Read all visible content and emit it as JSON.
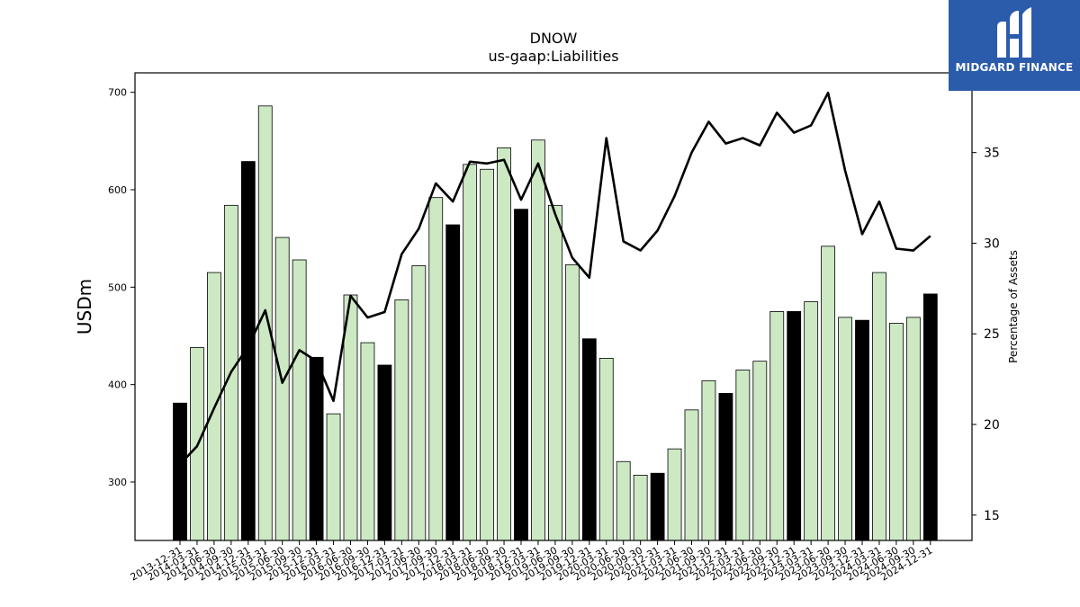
{
  "chart_data": {
    "type": "bar",
    "title": "DNOW",
    "subtitle": "us-gaap:Liabilities",
    "ylabel": "USDm",
    "y2label": "Percentage of Assets",
    "ylim": [
      240,
      720
    ],
    "y2lim": [
      13.6,
      39.4
    ],
    "yticks": [
      300,
      400,
      500,
      600,
      700
    ],
    "y2ticks": [
      15,
      20,
      25,
      30,
      35
    ],
    "colors": {
      "bar_quarter": "#cce9c4",
      "bar_year_end": "#000000",
      "line": "#000000"
    },
    "categories": [
      "2013-12-31",
      "2014-03-31",
      "2014-06-30",
      "2014-09-30",
      "2014-12-31",
      "2015-03-31",
      "2015-06-30",
      "2015-09-30",
      "2015-12-31",
      "2016-03-31",
      "2016-06-30",
      "2016-09-30",
      "2016-12-31",
      "2017-03-31",
      "2017-06-30",
      "2017-09-30",
      "2017-12-31",
      "2018-03-31",
      "2018-06-30",
      "2018-09-30",
      "2018-12-31",
      "2019-03-31",
      "2019-06-30",
      "2019-09-30",
      "2019-12-31",
      "2020-03-31",
      "2020-06-30",
      "2020-09-30",
      "2020-12-31",
      "2021-03-31",
      "2021-06-30",
      "2021-09-30",
      "2021-12-31",
      "2022-03-31",
      "2022-06-30",
      "2022-09-30",
      "2022-12-31",
      "2023-03-31",
      "2023-06-30",
      "2023-09-30",
      "2023-12-31",
      "2024-03-31",
      "2024-06-30",
      "2024-09-30",
      "2024-12-31"
    ],
    "series": [
      {
        "type": "bar",
        "values": [
          381,
          438,
          515,
          584,
          629,
          686,
          551,
          528,
          428,
          370,
          492,
          443,
          420,
          487,
          522,
          592,
          564,
          626,
          621,
          643,
          580,
          651,
          584,
          523,
          447,
          427,
          321,
          307,
          309,
          334,
          374,
          404,
          391,
          415,
          424,
          475,
          475,
          485,
          542,
          469,
          466,
          515,
          463,
          469,
          493
        ]
      },
      {
        "type": "line",
        "axis": "right",
        "values": [
          17.8,
          18.8,
          20.9,
          22.9,
          24.3,
          26.3,
          22.3,
          24.1,
          23.5,
          21.3,
          27.1,
          25.9,
          26.2,
          29.4,
          30.8,
          33.3,
          32.3,
          34.5,
          34.4,
          34.6,
          32.4,
          34.4,
          31.6,
          29.2,
          28.1,
          35.8,
          30.1,
          29.6,
          30.7,
          32.6,
          35.0,
          36.7,
          35.5,
          35.8,
          35.4,
          37.2,
          36.1,
          36.5,
          38.3,
          34.0,
          30.5,
          32.3,
          29.7,
          29.6,
          30.4
        ]
      }
    ]
  },
  "logo": {
    "text": "MIDGARD FINANCE"
  }
}
